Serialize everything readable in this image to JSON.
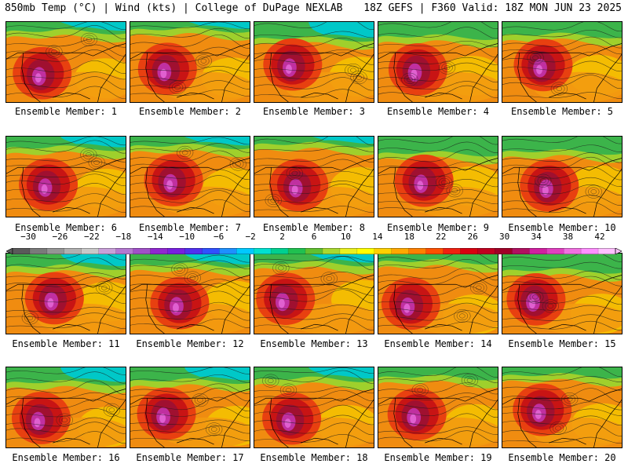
{
  "header": {
    "left": "850mb Temp (°C) | Wind (kts) | College of DuPage NEXLAB",
    "right": "18Z GEFS | F360 Valid: 18Z MON JUN 23 2025"
  },
  "panels": [
    {
      "caption": "Ensemble Member: 1"
    },
    {
      "caption": "Ensemble Member: 2"
    },
    {
      "caption": "Ensemble Member: 3"
    },
    {
      "caption": "Ensemble Member: 4"
    },
    {
      "caption": "Ensemble Member: 5"
    },
    {
      "caption": "Ensemble Member: 6"
    },
    {
      "caption": "Ensemble Member: 7"
    },
    {
      "caption": "Ensemble Member: 8"
    },
    {
      "caption": "Ensemble Member: 9"
    },
    {
      "caption": "Ensemble Member: 10"
    },
    {
      "caption": "Ensemble Member: 11"
    },
    {
      "caption": "Ensemble Member: 12"
    },
    {
      "caption": "Ensemble Member: 13"
    },
    {
      "caption": "Ensemble Member: 14"
    },
    {
      "caption": "Ensemble Member: 15"
    },
    {
      "caption": "Ensemble Member: 16"
    },
    {
      "caption": "Ensemble Member: 17"
    },
    {
      "caption": "Ensemble Member: 18"
    },
    {
      "caption": "Ensemble Member: 19"
    },
    {
      "caption": "Ensemble Member: 20"
    }
  ],
  "colorbar": {
    "ticks": [
      "−30",
      "−26",
      "−22",
      "−18",
      "−14",
      "−10",
      "−6",
      "−2",
      "2",
      "6",
      "10",
      "14",
      "18",
      "22",
      "26",
      "30",
      "34",
      "38",
      "42"
    ],
    "colors": [
      "#5a5a5a",
      "#7a7a7a",
      "#959595",
      "#b0b0b0",
      "#c8c8c8",
      "#c8a0d8",
      "#b478d0",
      "#a050c8",
      "#9028d0",
      "#7820e0",
      "#5030f0",
      "#3050ff",
      "#1e90ff",
      "#00c8ff",
      "#00e0d0",
      "#00d090",
      "#20c050",
      "#60c030",
      "#a8d830",
      "#e8f020",
      "#ffff00",
      "#ffd000",
      "#ffa800",
      "#ff8000",
      "#ff5000",
      "#f02010",
      "#d80010",
      "#c00020",
      "#a00028",
      "#b01060",
      "#d020a0",
      "#e040c0",
      "#f070e0",
      "#ff90ff",
      "#ffc0ff"
    ]
  }
}
